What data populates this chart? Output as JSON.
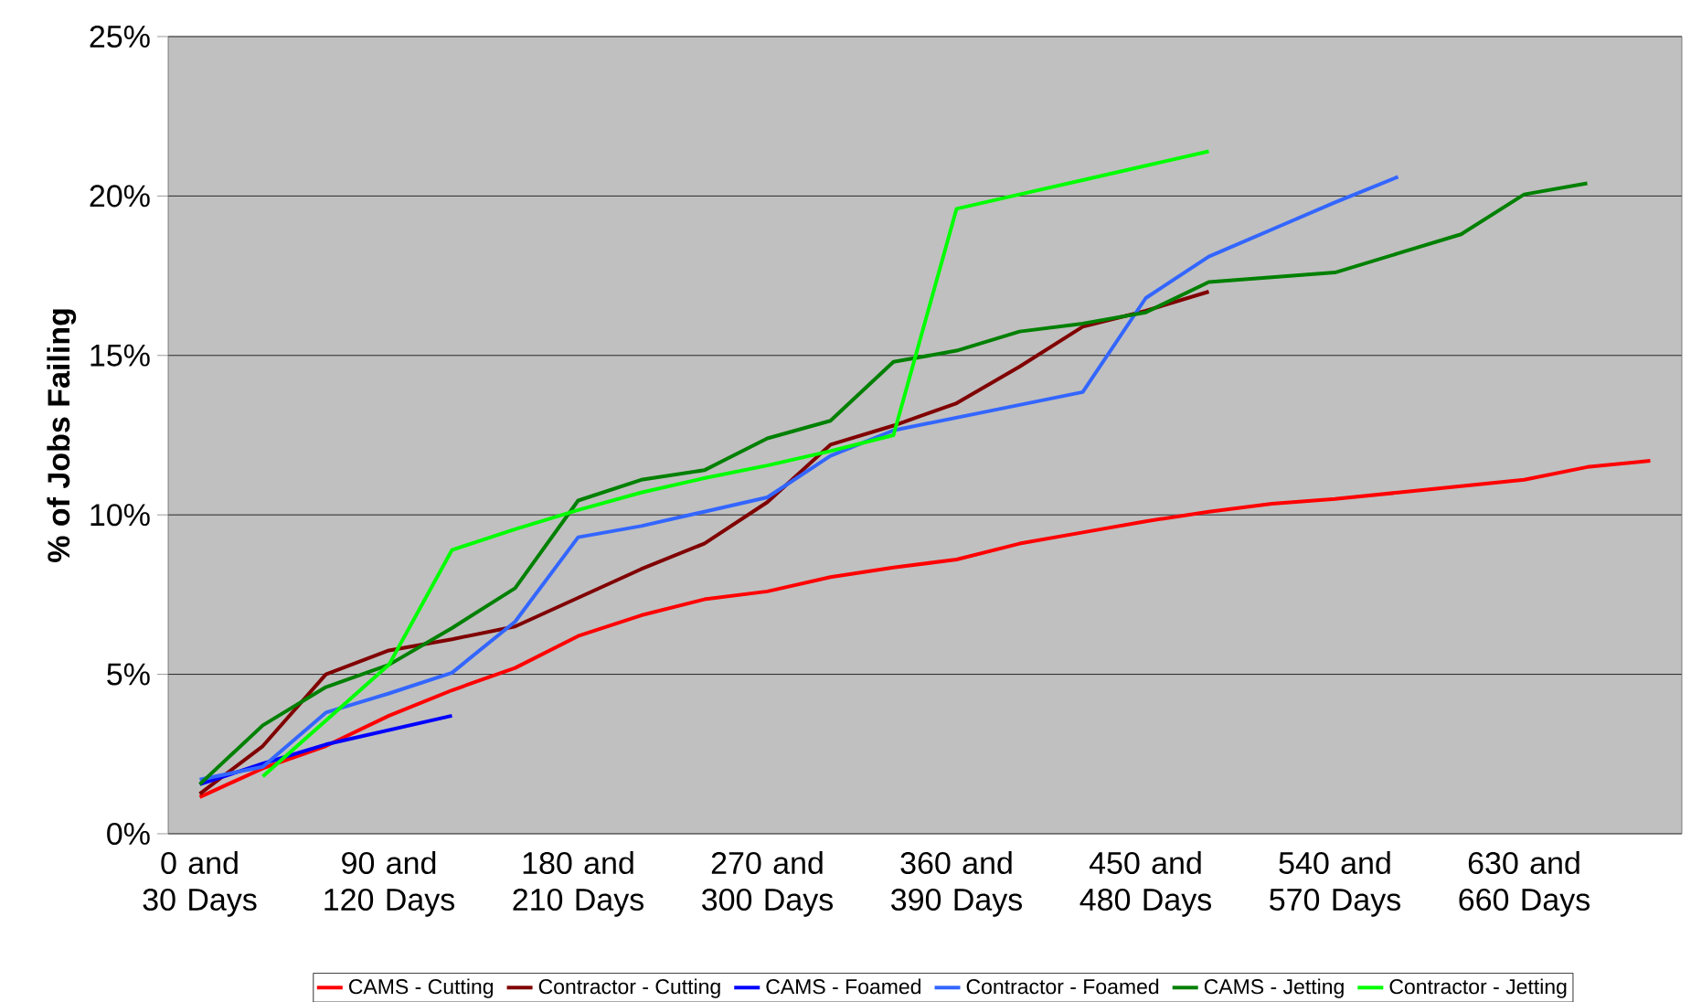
{
  "chart_data": {
    "type": "line",
    "ylabel": "% of Jobs Failing",
    "categories": [
      "0 and 30 Days",
      null,
      null,
      "90 and 120 Days",
      null,
      null,
      "180 and 210 Days",
      null,
      null,
      "270 and 300 Days",
      null,
      null,
      "360 and 390 Days",
      null,
      null,
      "450 and 480 Days",
      null,
      null,
      "540 and 570 Days",
      null,
      null,
      "630 and 660 Days",
      null,
      null
    ],
    "ylim": [
      0,
      25
    ],
    "yticks": [
      {
        "value": 0,
        "label": "0%"
      },
      {
        "value": 5,
        "label": "5%"
      },
      {
        "value": 10,
        "label": "10%"
      },
      {
        "value": 15,
        "label": "15%"
      },
      {
        "value": 20,
        "label": "20%"
      },
      {
        "value": 25,
        "label": "25%"
      }
    ],
    "grid": "y",
    "legend": "bottom",
    "marker": "none",
    "line_style": "solid",
    "series": [
      {
        "name": "CAMS - Cutting",
        "color": "#ff0000",
        "values": [
          1.15,
          2.05,
          2.75,
          3.7,
          4.5,
          5.2,
          6.2,
          6.85,
          7.35,
          7.6,
          8.05,
          8.35,
          8.6,
          9.1,
          9.45,
          9.8,
          10.1,
          10.35,
          10.5,
          10.7,
          10.9,
          11.1,
          11.5,
          11.7
        ]
      },
      {
        "name": "Contractor - Cutting",
        "color": "#800000",
        "values": [
          1.25,
          2.75,
          5.0,
          5.75,
          6.1,
          6.5,
          7.4,
          8.3,
          9.1,
          10.4,
          12.2,
          12.8,
          13.5,
          14.65,
          15.9,
          16.4,
          17.0,
          null,
          null,
          null,
          null,
          null,
          null,
          null
        ]
      },
      {
        "name": "CAMS - Foamed",
        "color": "#0000ff",
        "values": [
          1.55,
          2.2,
          2.8,
          3.25,
          3.7,
          null,
          null,
          null,
          null,
          null,
          null,
          null,
          null,
          null,
          null,
          null,
          null,
          null,
          null,
          null,
          null,
          null,
          null,
          null
        ]
      },
      {
        "name": "Contractor - Foamed",
        "color": "#3366ff",
        "values": [
          1.7,
          2.1,
          3.8,
          4.4,
          5.05,
          6.65,
          9.3,
          9.65,
          10.1,
          10.55,
          11.85,
          12.65,
          13.05,
          13.45,
          13.85,
          16.8,
          18.1,
          18.95,
          19.8,
          20.6,
          null,
          null,
          null,
          null
        ]
      },
      {
        "name": "CAMS - Jetting",
        "color": "#008000",
        "values": [
          1.55,
          3.4,
          4.6,
          5.3,
          6.45,
          7.7,
          10.45,
          11.1,
          11.4,
          12.4,
          12.95,
          14.8,
          15.15,
          15.75,
          16.0,
          16.35,
          17.3,
          17.45,
          17.6,
          18.2,
          18.8,
          20.05,
          20.4,
          null
        ]
      },
      {
        "name": "Contractor - Jetting",
        "color": "#00ff00",
        "values": [
          null,
          1.8,
          3.55,
          5.3,
          8.9,
          9.55,
          10.15,
          10.7,
          11.15,
          11.55,
          12.0,
          12.5,
          19.6,
          20.05,
          20.5,
          20.95,
          21.4,
          null,
          null,
          null,
          null,
          null,
          null,
          null
        ]
      }
    ]
  }
}
